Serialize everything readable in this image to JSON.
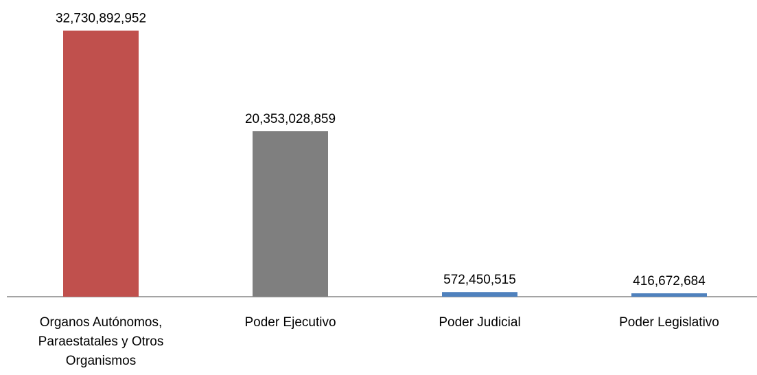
{
  "chart_data": {
    "type": "bar",
    "categories": [
      "Organos Autónomos, Paraestatales y Otros Organismos",
      "Poder Ejecutivo",
      "Poder Judicial",
      "Poder Legislativo"
    ],
    "values": [
      32730892952,
      20353028859,
      572450515,
      416672684
    ],
    "value_labels": [
      "32,730,892,952",
      "20,353,028,859",
      "572,450,515",
      "416,672,684"
    ],
    "colors": [
      "#c0504d",
      "#7f7f7f",
      "#4f81bd",
      "#4f81bd"
    ],
    "ylim": [
      0,
      36500000000
    ]
  }
}
